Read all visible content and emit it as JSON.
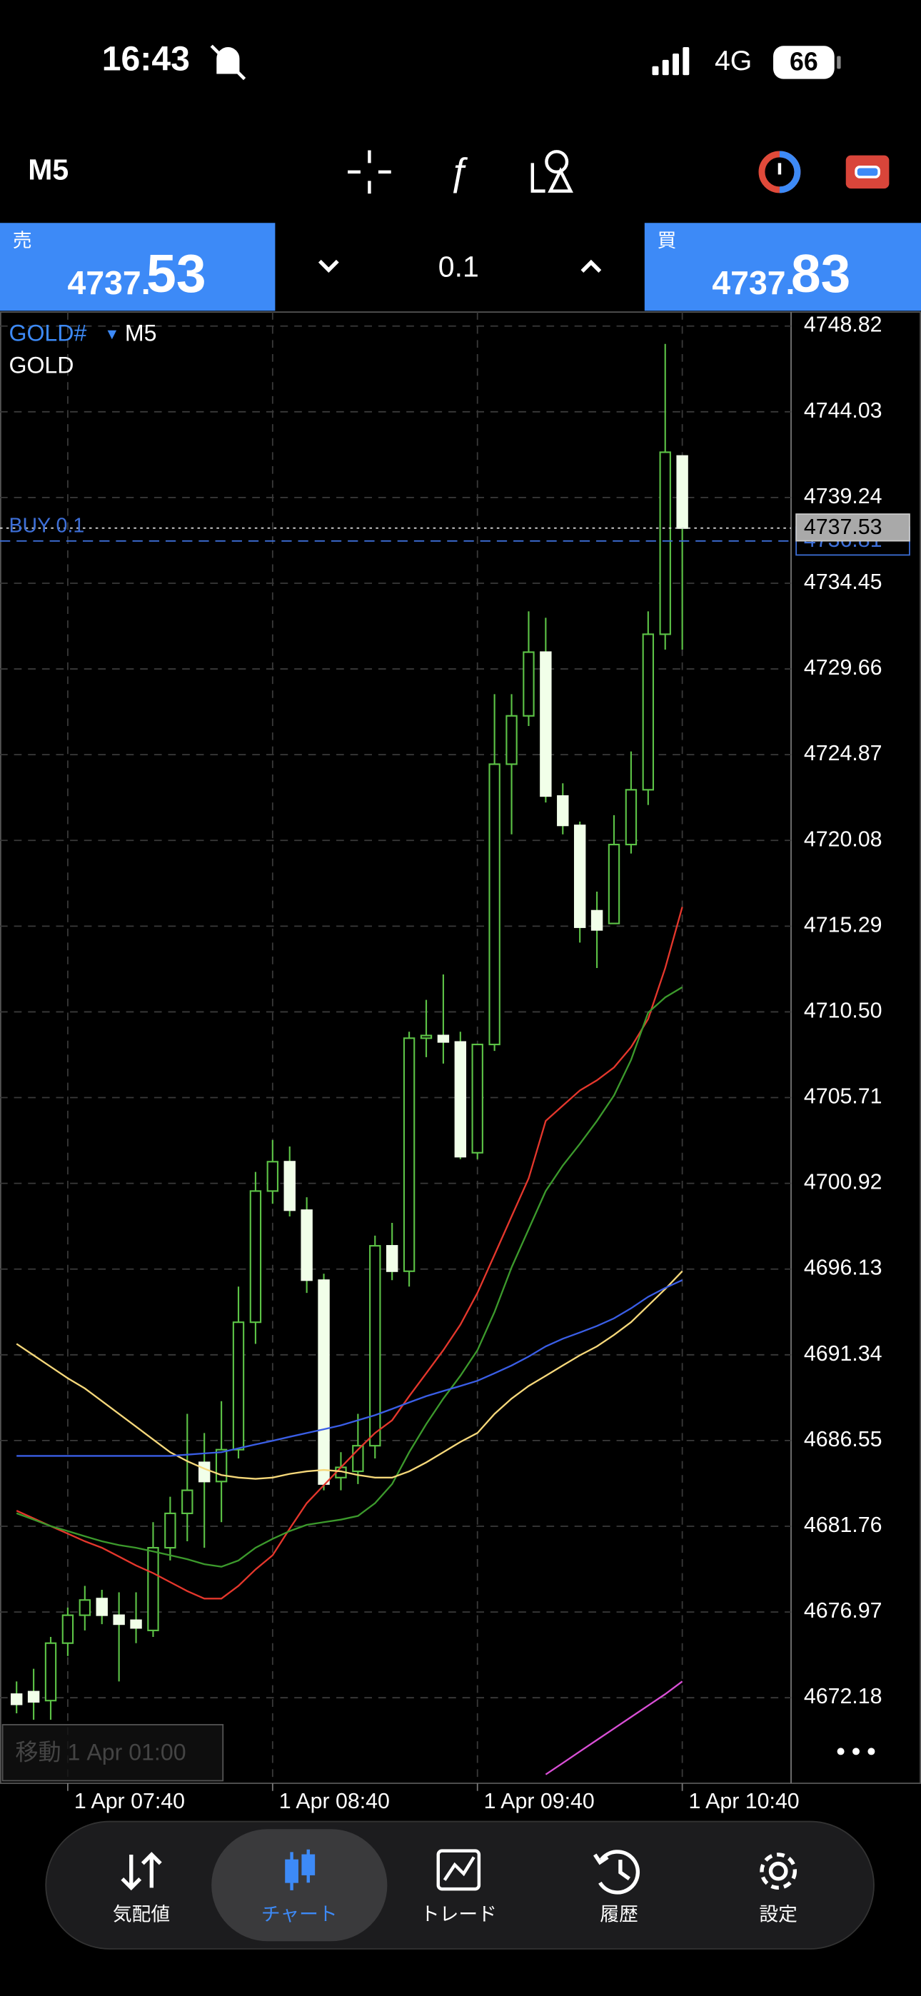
{
  "status_bar": {
    "time": "16:43",
    "network": "4G",
    "battery": "66"
  },
  "toolbar": {
    "timeframe": "M5"
  },
  "trade_panel": {
    "sell": {
      "label": "売",
      "price_head": "4737.",
      "price_tail": "53"
    },
    "volume": "0.1",
    "buy": {
      "label": "買",
      "price_head": "4737.",
      "price_tail": "83"
    }
  },
  "chart_data": {
    "type": "candlestick",
    "symbol": "GOLD#",
    "timeframe": "M5",
    "description": "GOLD",
    "categories": [
      null,
      null,
      null,
      "1 Apr 07:40",
      null,
      null,
      null,
      null,
      null,
      null,
      null,
      null,
      null,
      null,
      null,
      "1 Apr 08:40",
      null,
      null,
      null,
      null,
      null,
      null,
      null,
      null,
      null,
      null,
      null,
      "1 Apr 09:40",
      null,
      null,
      null,
      null,
      null,
      null,
      null,
      null,
      null,
      null,
      null,
      "1 Apr 10:40"
    ],
    "open": [
      4672.38,
      4672.52,
      4672.02,
      4675.23,
      4676.79,
      4677.72,
      4676.79,
      4676.51,
      4675.94,
      4680.56,
      4682.48,
      4685.33,
      4684.26,
      4686.04,
      4693.16,
      4700.49,
      4702.13,
      4699.42,
      4695.51,
      4684.48,
      4684.83,
      4686.26,
      4697.43,
      4696.01,
      4709.03,
      4709.18,
      4708.82,
      4702.63,
      4708.68,
      4724.34,
      4727.04,
      4730.6,
      4722.56,
      4720.92,
      4716.15,
      4715.44,
      4719.85,
      4722.91,
      4731.6,
      4741.56
    ],
    "high": [
      4673.09,
      4673.8,
      4675.58,
      4677.22,
      4678.43,
      4678.21,
      4678.07,
      4678.07,
      4681.99,
      4683.41,
      4688.04,
      4686.97,
      4688.75,
      4695.15,
      4701.56,
      4703.34,
      4702.98,
      4700.14,
      4695.87,
      4685.9,
      4688.04,
      4698.0,
      4698.71,
      4709.39,
      4711.17,
      4712.59,
      4709.39,
      4708.68,
      4728.25,
      4728.25,
      4732.88,
      4732.52,
      4723.27,
      4721.13,
      4717.22,
      4721.49,
      4725.05,
      4732.88,
      4747.82,
      4741.56
    ],
    "low": [
      4671.31,
      4670.95,
      4670.95,
      4674.51,
      4675.94,
      4676.29,
      4673.09,
      4675.23,
      4675.58,
      4679.85,
      4680.92,
      4680.56,
      4681.99,
      4685.55,
      4691.95,
      4699.78,
      4699.07,
      4694.8,
      4683.77,
      4683.77,
      4684.12,
      4685.55,
      4695.51,
      4695.15,
      4707.97,
      4707.61,
      4702.27,
      4702.27,
      4708.32,
      4720.42,
      4726.47,
      4722.2,
      4720.42,
      4714.37,
      4712.95,
      4715.44,
      4719.35,
      4722.06,
      4730.74,
      4730.74
    ],
    "close": [
      4671.81,
      4671.95,
      4675.23,
      4676.79,
      4677.64,
      4676.79,
      4676.29,
      4676.08,
      4680.56,
      4682.48,
      4683.77,
      4684.26,
      4686.04,
      4693.16,
      4700.49,
      4702.13,
      4699.42,
      4695.51,
      4684.12,
      4685.05,
      4686.26,
      4697.43,
      4696.01,
      4709.03,
      4709.18,
      4708.82,
      4702.41,
      4708.68,
      4724.34,
      4727.04,
      4730.6,
      4722.56,
      4720.92,
      4715.23,
      4715.08,
      4719.85,
      4722.91,
      4731.6,
      4741.77,
      4737.53
    ],
    "up_color": "#5cc246",
    "down_color": "#f1ffe9",
    "series": [
      {
        "color": "#e5372c",
        "values": [
          4682.63,
          4682.2,
          4681.77,
          4681.35,
          4680.92,
          4680.56,
          4680.07,
          4679.57,
          4679.14,
          4678.64,
          4678.14,
          4677.72,
          4677.72,
          4678.43,
          4679.35,
          4680.14,
          4681.63,
          4683.05,
          4684.05,
          4685.05,
          4686.04,
          4686.97,
          4687.68,
          4689.03,
          4690.31,
          4691.6,
          4693.02,
          4694.8,
          4696.93,
          4699.07,
          4701.2,
          4704.41,
          4705.26,
          4706.11,
          4706.68,
          4707.4,
          4708.53,
          4710.1,
          4712.95,
          4716.36
        ]
      },
      {
        "color": "#3c9a2c",
        "values": [
          4682.49,
          4682.13,
          4681.77,
          4681.49,
          4681.2,
          4680.92,
          4680.71,
          4680.56,
          4680.35,
          4680.14,
          4679.92,
          4679.64,
          4679.5,
          4679.85,
          4680.56,
          4681.06,
          4681.49,
          4681.84,
          4681.99,
          4682.13,
          4682.34,
          4683.05,
          4684.12,
          4685.9,
          4687.47,
          4688.89,
          4690.17,
          4691.6,
          4693.73,
          4696.22,
          4698.36,
          4700.49,
          4701.92,
          4703.13,
          4704.41,
          4705.83,
          4707.82,
          4710.46,
          4711.31,
          4711.88
        ]
      },
      {
        "color": "#f6d87a",
        "values": [
          4691.95,
          4691.31,
          4690.67,
          4690.03,
          4689.46,
          4688.75,
          4688.04,
          4687.33,
          4686.61,
          4685.9,
          4685.4,
          4684.98,
          4684.62,
          4684.48,
          4684.41,
          4684.48,
          4684.69,
          4684.83,
          4684.91,
          4684.83,
          4684.62,
          4684.48,
          4684.48,
          4684.83,
          4685.33,
          4685.9,
          4686.47,
          4686.97,
          4688.04,
          4688.89,
          4689.6,
          4690.17,
          4690.74,
          4691.31,
          4691.81,
          4692.45,
          4693.16,
          4694.09,
          4695.01,
          4696.01
        ]
      },
      {
        "color": "#3a5ee6",
        "values": [
          4685.69,
          4685.69,
          4685.69,
          4685.69,
          4685.69,
          4685.69,
          4685.69,
          4685.69,
          4685.69,
          4685.69,
          4685.76,
          4685.83,
          4685.9,
          4686.12,
          4686.33,
          4686.54,
          4686.76,
          4686.97,
          4687.18,
          4687.4,
          4687.68,
          4687.97,
          4688.32,
          4688.68,
          4689.03,
          4689.32,
          4689.6,
          4689.89,
          4690.31,
          4690.74,
          4691.24,
          4691.81,
          4692.24,
          4692.59,
          4692.95,
          4693.38,
          4693.94,
          4694.58,
          4695.08,
          4695.51
        ]
      },
      {
        "color": "#d94fd6",
        "values": [
          null,
          null,
          null,
          null,
          null,
          null,
          null,
          null,
          null,
          null,
          null,
          null,
          null,
          null,
          null,
          null,
          null,
          null,
          null,
          null,
          null,
          null,
          null,
          null,
          null,
          null,
          null,
          null,
          null,
          null,
          null,
          4667.89,
          4668.53,
          4669.18,
          4669.82,
          4670.46,
          4671.1,
          4671.74,
          4672.38,
          4673.09
        ]
      }
    ],
    "ylim": [
      4667.4,
      4749.6
    ],
    "yticks": [
      4748.82,
      4744.03,
      4739.24,
      4734.45,
      4729.66,
      4724.87,
      4720.08,
      4715.29,
      {
        "value": 4710.5,
        "label": "4710.50"
      },
      4705.71,
      4700.92,
      4696.13,
      4691.34,
      4686.55,
      4681.76,
      4676.97,
      4672.18
    ],
    "grid": true,
    "bid": 4737.53,
    "position": {
      "label": "BUY 0.1",
      "price": 4736.81
    },
    "scroll_label": "移動 1 Apr 01:00"
  },
  "nav": {
    "tabs": [
      "気配値",
      "チャート",
      "トレード",
      "履歴",
      "設定"
    ],
    "active": 1
  }
}
